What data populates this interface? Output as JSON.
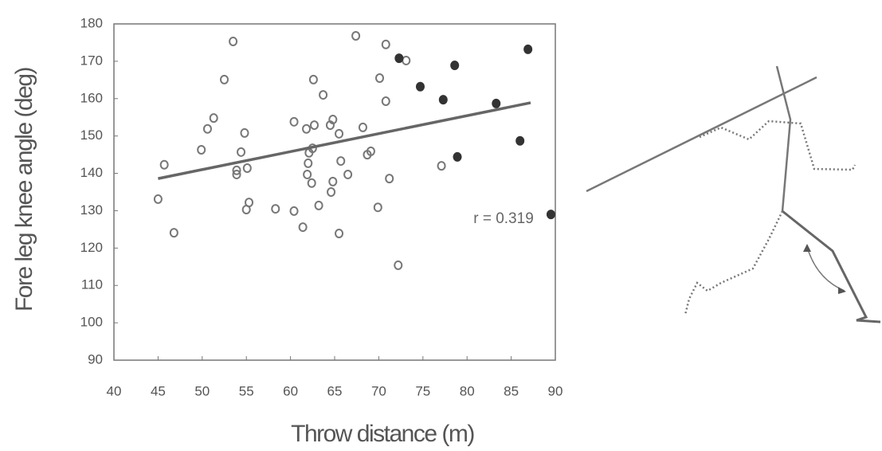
{
  "chart_data": {
    "type": "scatter",
    "x_label": "Throw distance (m)",
    "y_label": "Fore leg knee angle (deg)",
    "annotation": "r = 0.319",
    "xlim": [
      40,
      90
    ],
    "xticks": [
      40,
      45,
      50,
      55,
      60,
      65,
      70,
      75,
      80,
      85,
      90
    ],
    "ylim": [
      90,
      180
    ],
    "yticks": [
      90,
      100,
      110,
      120,
      130,
      140,
      150,
      160,
      170,
      180
    ],
    "series": [
      {
        "marker": "open",
        "color": "#777",
        "x": [
          45,
          45.7,
          46.8,
          49.9,
          50.6,
          51.3,
          52.5,
          53.5,
          53.9,
          53.9,
          54.4,
          54.8,
          55.1,
          55.3,
          55,
          58.3,
          60.4,
          60.4,
          61.4,
          61.8,
          62.1,
          62,
          61.9,
          62.4,
          62.5,
          62.7,
          62.6,
          63.2,
          63.7,
          64.5,
          64.8,
          64.8,
          64.6,
          65.5,
          65.7,
          65.5,
          66.5,
          67.4,
          68.2,
          68.7,
          69.1,
          69.9,
          70.1,
          70.8,
          70.8,
          71.2,
          72.2,
          73.1,
          77.1
        ],
        "values": [
          133.1,
          142.3,
          124.1,
          146.3,
          151.9,
          154.8,
          165.1,
          175.3,
          140.8,
          139.7,
          145.7,
          150.8,
          141.4,
          132.2,
          130.3,
          130.5,
          153.8,
          129.9,
          125.6,
          151.9,
          145.5,
          142.7,
          139.7,
          137.4,
          146.7,
          152.9,
          165.1,
          131.4,
          161,
          152.9,
          154.4,
          137.8,
          135,
          150.6,
          143.3,
          123.9,
          139.7,
          176.8,
          152.3,
          145,
          145.9,
          130.9,
          165.5,
          174.5,
          159.3,
          138.6,
          115.4,
          170.2,
          142
        ]
      },
      {
        "marker": "filled",
        "color": "#333",
        "x": [
          72.3,
          74.7,
          77.3,
          78.6,
          78.9,
          83.3,
          86,
          86.9,
          89.5
        ],
        "values": [
          170.8,
          163.2,
          159.7,
          168.9,
          144.4,
          158.7,
          148.7,
          173.2,
          129
        ]
      }
    ],
    "fit": {
      "color": "#666",
      "x": [
        45,
        87.2
      ],
      "values": [
        138.6,
        158.9
      ]
    }
  }
}
